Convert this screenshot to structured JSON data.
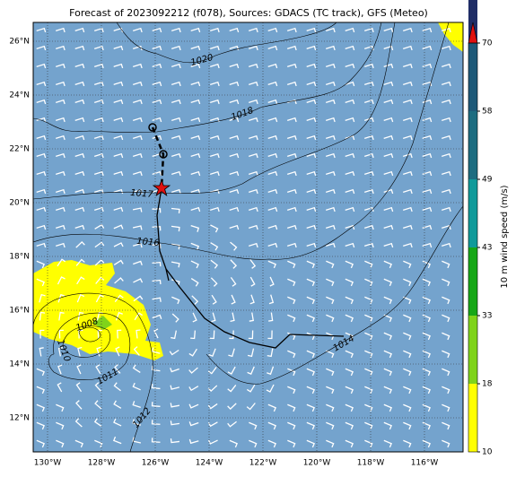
{
  "map": {
    "title": "Forecast of 2023092212 (f078), Sources: GDACS (TC track), GFS (Meteo)",
    "lon_ticks": [
      {
        "value": -130,
        "label": "130°W"
      },
      {
        "value": -128,
        "label": "128°W"
      },
      {
        "value": -126,
        "label": "126°W"
      },
      {
        "value": -124,
        "label": "124°W"
      },
      {
        "value": -122,
        "label": "122°W"
      },
      {
        "value": -120,
        "label": "120°W"
      },
      {
        "value": -118,
        "label": "118°W"
      },
      {
        "value": -116,
        "label": "116°W"
      }
    ],
    "lat_ticks": [
      {
        "value": 12,
        "label": "12°N"
      },
      {
        "value": 14,
        "label": "14°N"
      },
      {
        "value": 16,
        "label": "16°N"
      },
      {
        "value": 18,
        "label": "18°N"
      },
      {
        "value": 20,
        "label": "20°N"
      },
      {
        "value": 22,
        "label": "22°N"
      },
      {
        "value": 24,
        "label": "24°N"
      },
      {
        "value": 26,
        "label": "26°N"
      }
    ],
    "colorbar": {
      "label": "10 m wind speed (m/s)",
      "levels": [
        10,
        18,
        33,
        43,
        49,
        58,
        70
      ],
      "colors": [
        "#ffff00",
        "#7fd31a",
        "#17a717",
        "#109a9a",
        "#1d6c80",
        "#1e5978",
        "#1f2d66"
      ],
      "extend_color": "#e01010"
    },
    "contour_labels": [
      "1020",
      "1018",
      "1017",
      "1016",
      "1008",
      "1010",
      "1011",
      "1012",
      "1014"
    ]
  }
}
